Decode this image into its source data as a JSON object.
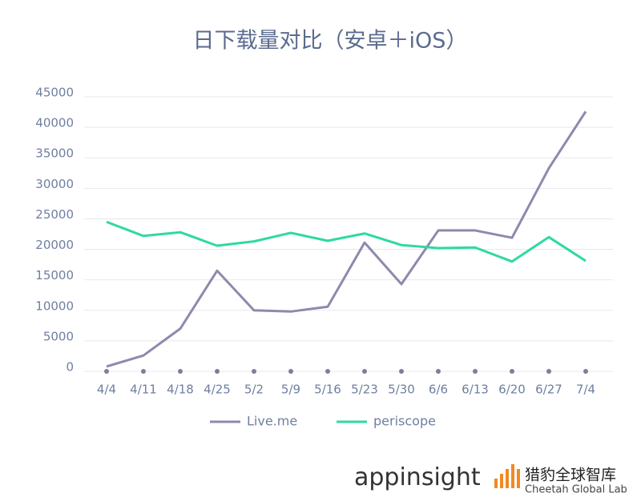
{
  "chart_data": {
    "type": "line",
    "title": "日下载量对比（安卓＋iOS）",
    "categories": [
      "4/4",
      "4/11",
      "4/18",
      "4/25",
      "5/2",
      "5/9",
      "5/16",
      "5/23",
      "5/30",
      "6/6",
      "6/13",
      "6/20",
      "6/27",
      "7/4"
    ],
    "series": [
      {
        "name": "Live.me",
        "color": "#8e89ad",
        "values": [
          800,
          2600,
          7000,
          16500,
          10000,
          9800,
          10600,
          21100,
          14300,
          23100,
          23100,
          21900,
          33300,
          42600
        ]
      },
      {
        "name": "periscope",
        "color": "#2fd9a1",
        "values": [
          24500,
          22200,
          22800,
          20600,
          21300,
          22700,
          21400,
          22600,
          20700,
          20200,
          20300,
          18000,
          22000,
          18100
        ]
      }
    ],
    "ylim": [
      0,
      45000
    ],
    "yticks": [
      0,
      5000,
      10000,
      15000,
      20000,
      25000,
      30000,
      35000,
      40000,
      45000
    ],
    "grid": true,
    "legend": "bottom"
  },
  "footer": {
    "brand": "appinsight",
    "lab_cn": "猎豹全球智库",
    "lab_en": "Cheetah Global Lab"
  }
}
